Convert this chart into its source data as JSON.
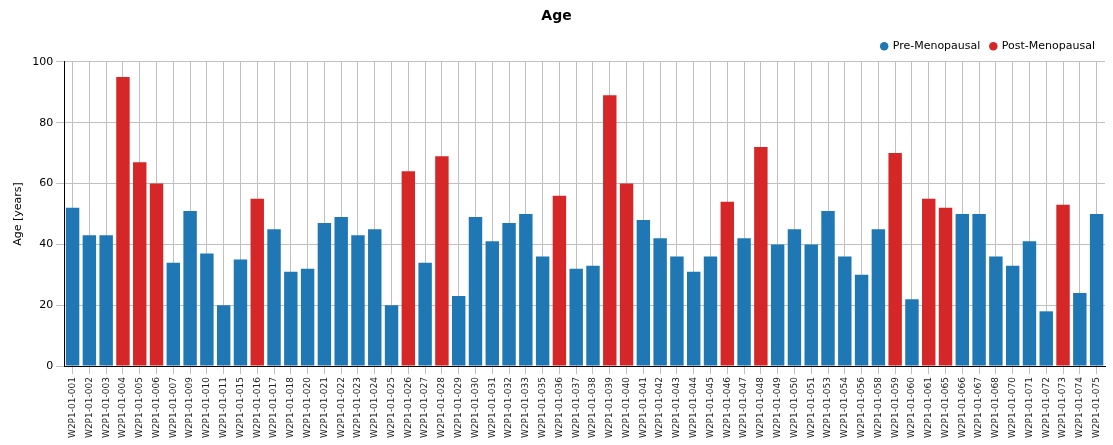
{
  "chart_data": {
    "type": "bar",
    "title": "Age",
    "ylabel": "Age [years]",
    "categories": [
      "W2P1-01-001",
      "W2P1-01-002",
      "W2P1-01-003",
      "W2P1-01-004",
      "W2P1-01-005",
      "W2P1-01-006",
      "W2P1-01-007",
      "W2P1-01-009",
      "W2P1-01-010",
      "W2P1-01-011",
      "W2P1-01-015",
      "W2P1-01-016",
      "W2P1-01-017",
      "W2P1-01-018",
      "W2P1-01-020",
      "W2P1-01-021",
      "W2P1-01-022",
      "W2P1-01-023",
      "W2P1-01-024",
      "W2P1-01-025",
      "W2P1-01-026",
      "W2P1-01-027",
      "W2P1-01-028",
      "W2P1-01-029",
      "W2P1-01-030",
      "W2P1-01-031",
      "W2P1-01-032",
      "W2P1-01-033",
      "W2P1-01-035",
      "W2P1-01-036",
      "W2P1-01-037",
      "W2P1-01-038",
      "W2P1-01-039",
      "W2P1-01-040",
      "W2P1-01-041",
      "W2P1-01-042",
      "W2P1-01-043",
      "W2P1-01-044",
      "W2P1-01-045",
      "W2P1-01-046",
      "W2P1-01-047",
      "W2P1-01-048",
      "W2P1-01-049",
      "W2P1-01-050",
      "W2P1-01-051",
      "W2P1-01-053",
      "W2P1-01-054",
      "W2P1-01-056",
      "W2P1-01-058",
      "W2P1-01-059",
      "W2P1-01-060",
      "W2P1-01-061",
      "W2P1-01-065",
      "W2P1-01-066",
      "W2P1-01-067",
      "W2P1-01-068",
      "W2P1-01-070",
      "W2P1-01-071",
      "W2P1-01-072",
      "W2P1-01-073",
      "W2P1-01-074",
      "W2P1-01-075"
    ],
    "series": [
      {
        "name": "Pre-Menopausal",
        "color": "#1f77b4",
        "values": [
          52,
          43,
          43,
          null,
          null,
          null,
          34,
          51,
          37,
          20,
          35,
          null,
          45,
          31,
          32,
          47,
          49,
          43,
          45,
          20,
          null,
          34,
          null,
          23,
          49,
          41,
          47,
          50,
          36,
          null,
          32,
          33,
          null,
          null,
          48,
          42,
          36,
          31,
          36,
          null,
          42,
          null,
          40,
          45,
          40,
          51,
          36,
          30,
          45,
          null,
          22,
          null,
          null,
          50,
          50,
          36,
          33,
          41,
          18,
          null,
          24,
          50
        ]
      },
      {
        "name": "Post-Menopausal",
        "color": "#d62728",
        "values": [
          null,
          null,
          null,
          95,
          67,
          60,
          null,
          null,
          null,
          null,
          null,
          55,
          null,
          null,
          null,
          null,
          null,
          null,
          null,
          null,
          64,
          null,
          69,
          null,
          null,
          null,
          null,
          null,
          null,
          56,
          null,
          null,
          89,
          60,
          null,
          null,
          null,
          null,
          null,
          54,
          null,
          72,
          null,
          null,
          null,
          null,
          null,
          null,
          null,
          70,
          null,
          55,
          52,
          null,
          null,
          null,
          null,
          null,
          null,
          53,
          null,
          null
        ]
      }
    ],
    "ylim": [
      0,
      100
    ],
    "yticks": [
      0,
      20,
      40,
      60,
      80,
      100
    ],
    "grid": true,
    "legend": "top right"
  }
}
